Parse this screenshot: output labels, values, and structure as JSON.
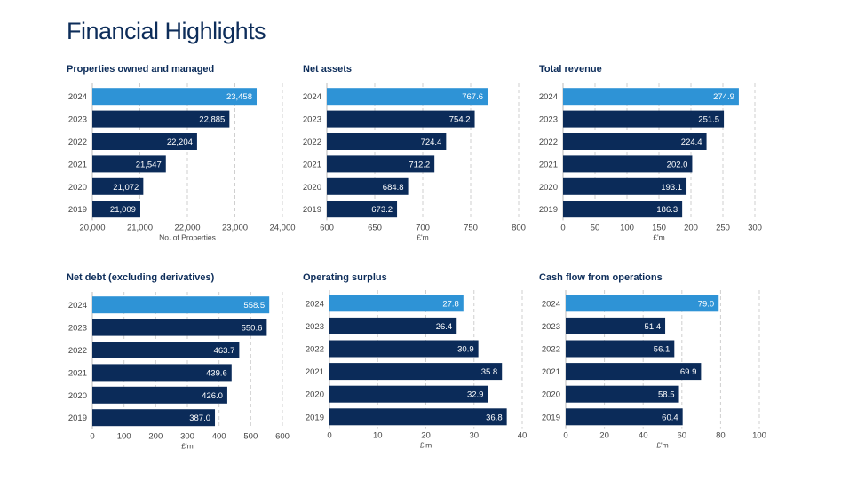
{
  "title": "Financial Highlights",
  "colors": {
    "highlight": "#2e93d6",
    "bar": "#0b2b59",
    "text": "#444444",
    "grid": "#cfcfcf"
  },
  "chart_data": [
    {
      "type": "bar",
      "orientation": "horizontal",
      "title": "Properties owned and managed",
      "categories": [
        "2024",
        "2023",
        "2022",
        "2021",
        "2020",
        "2019"
      ],
      "values": [
        23458,
        22885,
        22204,
        21547,
        21072,
        21009
      ],
      "labels": [
        "23,458",
        "22,885",
        "22,204",
        "21,547",
        "21,072",
        "21,009"
      ],
      "xlim": [
        20000,
        24000
      ],
      "ticks": [
        20000,
        21000,
        22000,
        23000,
        24000
      ],
      "tick_labels": [
        "20,000",
        "21,000",
        "22,000",
        "23,000",
        "24,000"
      ],
      "xlabel": "No. of Properties",
      "highlight_index": 0
    },
    {
      "type": "bar",
      "orientation": "horizontal",
      "title": "Net assets",
      "categories": [
        "2024",
        "2023",
        "2022",
        "2021",
        "2020",
        "2019"
      ],
      "values": [
        767.6,
        754.2,
        724.4,
        712.2,
        684.8,
        673.2
      ],
      "labels": [
        "767.6",
        "754.2",
        "724.4",
        "712.2",
        "684.8",
        "673.2"
      ],
      "xlim": [
        600,
        800
      ],
      "ticks": [
        600,
        650,
        700,
        750,
        800
      ],
      "tick_labels": [
        "600",
        "650",
        "700",
        "750",
        "800"
      ],
      "xlabel": "£'m",
      "highlight_index": 0
    },
    {
      "type": "bar",
      "orientation": "horizontal",
      "title": "Total revenue",
      "categories": [
        "2024",
        "2023",
        "2022",
        "2021",
        "2020",
        "2019"
      ],
      "values": [
        274.9,
        251.5,
        224.4,
        202.0,
        193.1,
        186.3
      ],
      "labels": [
        "274.9",
        "251.5",
        "224.4",
        "202.0",
        "193.1",
        "186.3"
      ],
      "xlim": [
        0,
        300
      ],
      "ticks": [
        0,
        50,
        100,
        150,
        200,
        250,
        300
      ],
      "tick_labels": [
        "0",
        "50",
        "100",
        "150",
        "200",
        "250",
        "300"
      ],
      "xlabel": "£'m",
      "highlight_index": 0
    },
    {
      "type": "bar",
      "orientation": "horizontal",
      "title": "Net debt (excluding derivatives)",
      "categories": [
        "2024",
        "2023",
        "2022",
        "2021",
        "2020",
        "2019"
      ],
      "values": [
        558.5,
        550.6,
        463.7,
        439.6,
        426.0,
        387.0
      ],
      "labels": [
        "558.5",
        "550.6",
        "463.7",
        "439.6",
        "426.0",
        "387.0"
      ],
      "xlim": [
        0,
        600
      ],
      "ticks": [
        0,
        100,
        200,
        300,
        400,
        500,
        600
      ],
      "tick_labels": [
        "0",
        "100",
        "200",
        "300",
        "400",
        "500",
        "600"
      ],
      "xlabel": "£'m",
      "highlight_index": 0
    },
    {
      "type": "bar",
      "orientation": "horizontal",
      "title": "Operating surplus",
      "categories": [
        "2024",
        "2023",
        "2022",
        "2021",
        "2020",
        "2019"
      ],
      "values": [
        27.8,
        26.4,
        30.9,
        35.8,
        32.9,
        36.8
      ],
      "labels": [
        "27.8",
        "26.4",
        "30.9",
        "35.8",
        "32.9",
        "36.8"
      ],
      "xlim": [
        0,
        40
      ],
      "ticks": [
        0,
        10,
        20,
        30,
        40
      ],
      "tick_labels": [
        "0",
        "10",
        "20",
        "30",
        "40"
      ],
      "xlabel": "£'m",
      "highlight_index": 0
    },
    {
      "type": "bar",
      "orientation": "horizontal",
      "title": "Cash flow from operations",
      "categories": [
        "2024",
        "2023",
        "2022",
        "2021",
        "2020",
        "2019"
      ],
      "values": [
        79.0,
        51.4,
        56.1,
        69.9,
        58.5,
        60.4
      ],
      "labels": [
        "79.0",
        "51.4",
        "56.1",
        "69.9",
        "58.5",
        "60.4"
      ],
      "xlim": [
        0,
        100
      ],
      "ticks": [
        0,
        20,
        40,
        60,
        80,
        100
      ],
      "tick_labels": [
        "0",
        "20",
        "40",
        "60",
        "80",
        "100"
      ],
      "xlabel": "£'m",
      "highlight_index": 0
    }
  ]
}
